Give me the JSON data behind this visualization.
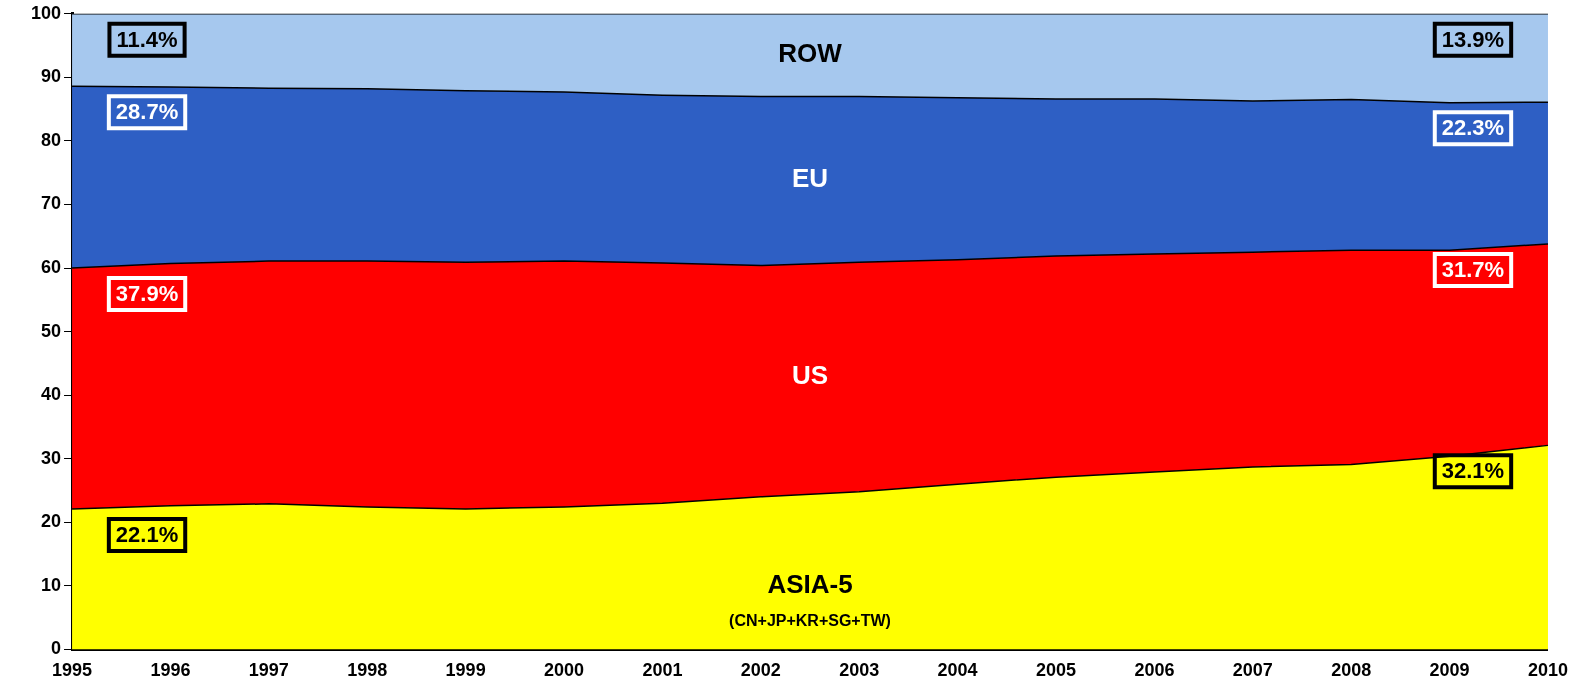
{
  "chart_data": {
    "type": "area",
    "stacked": true,
    "x": [
      1995,
      1996,
      1997,
      1998,
      1999,
      2000,
      2001,
      2002,
      2003,
      2004,
      2005,
      2006,
      2007,
      2008,
      2009,
      2010
    ],
    "xlim": [
      1995,
      2010
    ],
    "xticks": [
      1995,
      1996,
      1997,
      1998,
      1999,
      2000,
      2001,
      2002,
      2003,
      2004,
      2005,
      2006,
      2007,
      2008,
      2009,
      2010
    ],
    "ylim": [
      0,
      100
    ],
    "yticks": [
      0,
      10,
      20,
      30,
      40,
      50,
      60,
      70,
      80,
      90,
      100
    ],
    "grid": false,
    "legend": false,
    "series": [
      {
        "name": "ASIA-5",
        "color": "#ffff00",
        "values": [
          22.1,
          22.6,
          22.9,
          22.4,
          22.1,
          22.4,
          23.0,
          24.0,
          24.8,
          26.0,
          27.1,
          27.9,
          28.7,
          29.1,
          30.4,
          32.1
        ]
      },
      {
        "name": "US",
        "color": "#ff0000",
        "values": [
          37.9,
          38.1,
          38.2,
          38.7,
          38.8,
          38.7,
          37.8,
          36.4,
          36.1,
          35.3,
          34.8,
          34.3,
          33.8,
          33.7,
          32.4,
          31.7
        ]
      },
      {
        "name": "EU",
        "color": "#2e5fc4",
        "values": [
          28.6,
          27.8,
          27.2,
          27.1,
          27.0,
          26.6,
          26.4,
          26.6,
          26.1,
          25.5,
          24.7,
          24.4,
          23.8,
          23.7,
          23.2,
          22.3
        ]
      },
      {
        "name": "ROW",
        "color": "#a6c8ee",
        "values": [
          11.4,
          11.5,
          11.7,
          11.8,
          12.1,
          12.3,
          12.8,
          13.0,
          13.0,
          13.2,
          13.4,
          13.4,
          13.7,
          13.5,
          14.0,
          13.9
        ]
      }
    ],
    "annotations": [
      "11.4%",
      "28.7%",
      "37.9%",
      "22.1%",
      "13.9%",
      "22.3%",
      "31.7%",
      "32.1%",
      "(CN+JP+KR+SG+TW)"
    ]
  }
}
